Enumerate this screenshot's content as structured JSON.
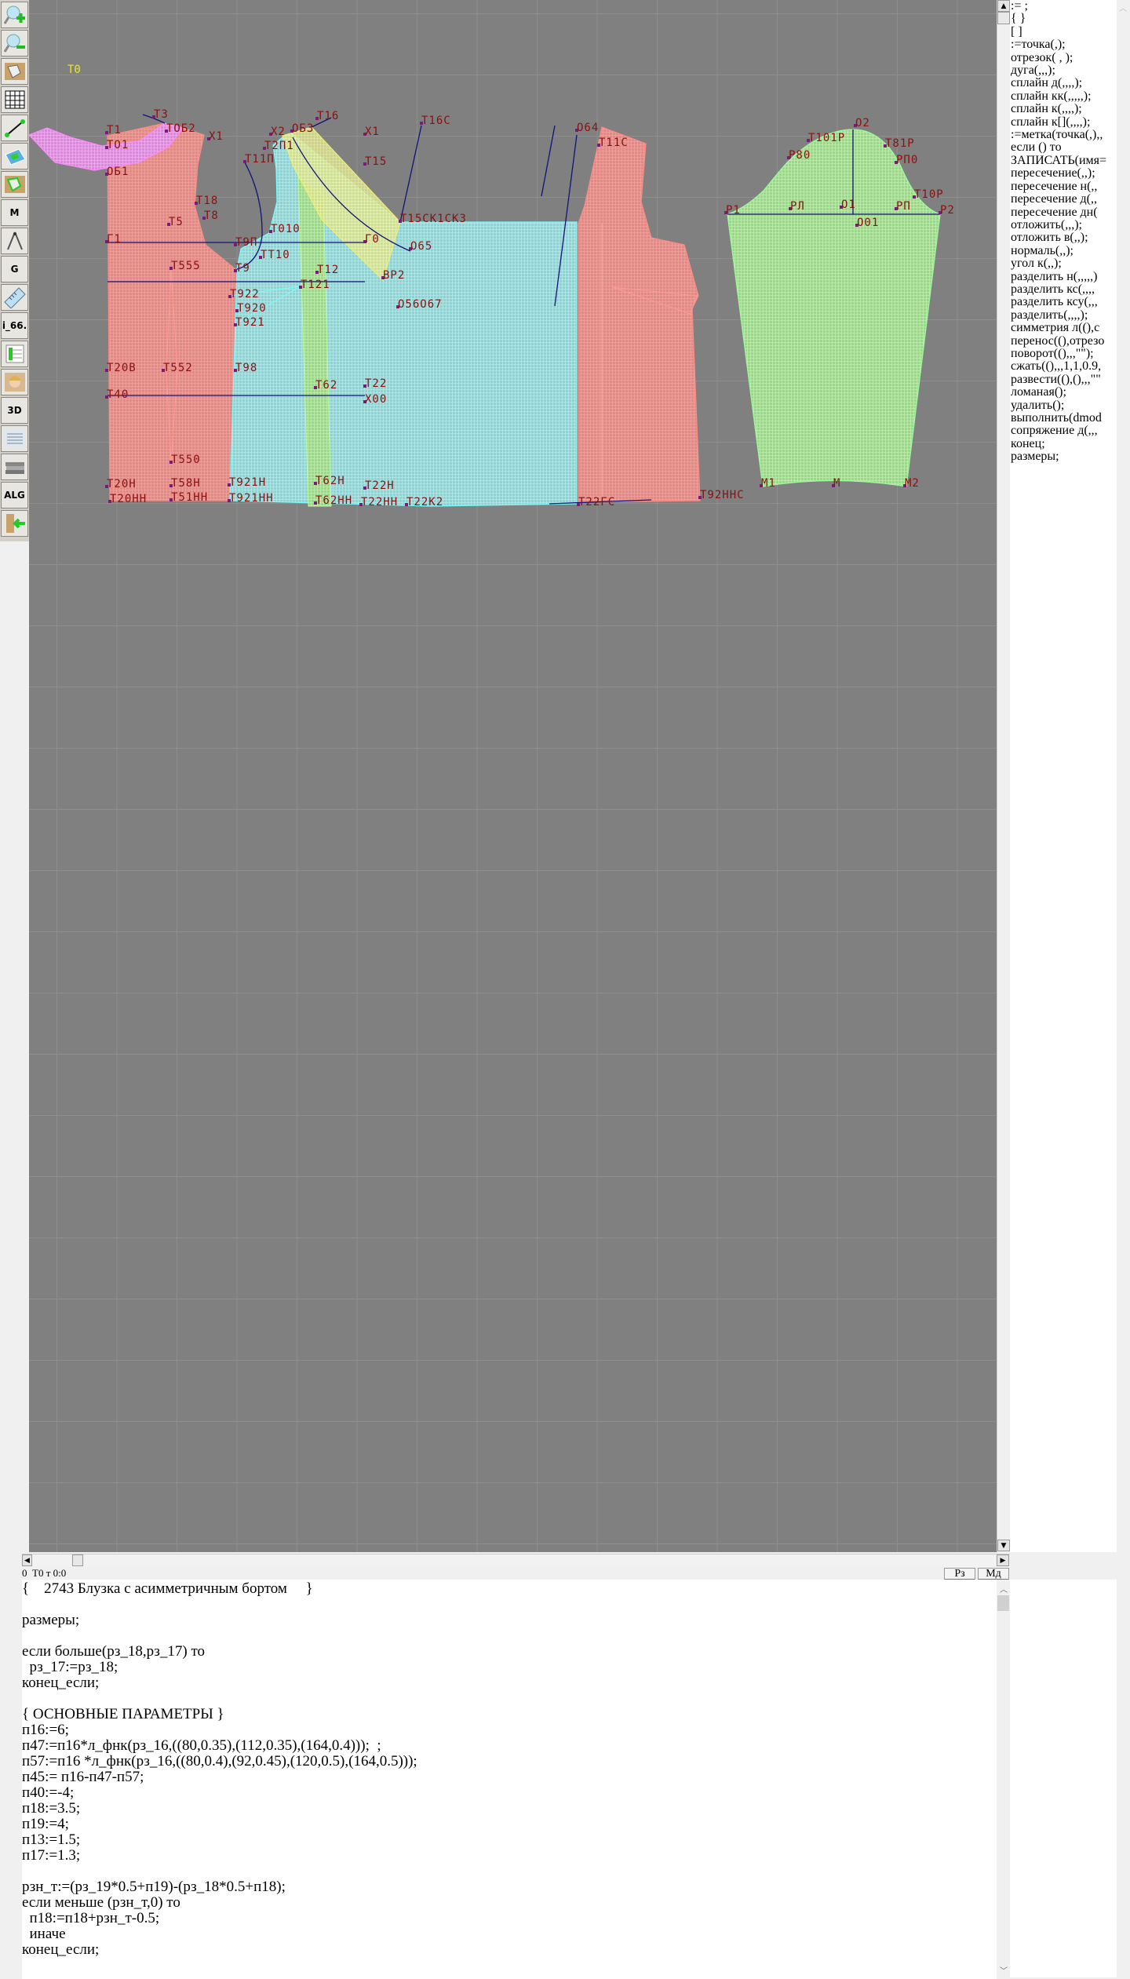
{
  "toolbar": {
    "items": [
      {
        "name": "zoom-in",
        "icon": "magnifier-plus-icon"
      },
      {
        "name": "zoom-out",
        "icon": "magnifier-minus-icon"
      },
      {
        "name": "pattern-pieces",
        "icon": "pattern-pieces-icon"
      },
      {
        "name": "grid",
        "icon": "grid-icon"
      },
      {
        "name": "segment",
        "icon": "segment-icon"
      },
      {
        "name": "layer",
        "icon": "layer-icon"
      },
      {
        "name": "outline",
        "icon": "outline-icon"
      },
      {
        "name": "model",
        "icon": "model-m-icon",
        "text": "M"
      },
      {
        "name": "compass",
        "icon": "compass-icon"
      },
      {
        "name": "grading",
        "icon": "grading-g-icon",
        "text": "G"
      },
      {
        "name": "ruler",
        "icon": "ruler-icon"
      },
      {
        "name": "version",
        "icon": "text-icon",
        "text": "i_66."
      },
      {
        "name": "table",
        "icon": "table-icon"
      },
      {
        "name": "avatar",
        "icon": "face-icon"
      },
      {
        "name": "3d",
        "icon": "3d-icon",
        "text": "3D"
      },
      {
        "name": "list",
        "icon": "list-icon"
      },
      {
        "name": "library",
        "icon": "books-icon"
      },
      {
        "name": "algorithm",
        "icon": "alg-icon",
        "text": "ALG"
      },
      {
        "name": "exit",
        "icon": "exit-arrow-icon"
      }
    ]
  },
  "canvas": {
    "origin_label": "Т0",
    "colors": {
      "background": "#808080",
      "back_piece": "#e88a86",
      "front_piece": "#8fd6d6",
      "collar": "#e08ce0",
      "facing": "#e6f08a",
      "strip": "#a6ec8c",
      "sleeve": "#9ee08e",
      "construction_line": "#101080",
      "label": "#8b1010"
    },
    "labels": [
      "Т3",
      "ТОБ2",
      "Х1",
      "Т1",
      "ТО1",
      "ОБ1",
      "Т11П",
      "Т18",
      "Т8",
      "Т5",
      "Г1",
      "Т9П",
      "Т010",
      "ТТ10",
      "Т9",
      "Т555",
      "Т121",
      "Т12",
      "ВР2",
      "Т922",
      "Т920",
      "Т921",
      "Т20В",
      "Т552",
      "Т98",
      "Т62",
      "Т22",
      "Х00",
      "Т40",
      "Т550",
      "Т20Н",
      "Т58Н",
      "Т921Н",
      "Т62Н",
      "Т22Н",
      "Т20НН",
      "Т51НН",
      "Т921НН",
      "Т62НН",
      "Т22НН",
      "Т22К2",
      "Х2",
      "ОБ3",
      "Т2П1",
      "Т16",
      "Х1",
      "Т15",
      "Т16С",
      "Т15СК1СК3",
      "Г0",
      "О65",
      "О56О67",
      "О64",
      "Т11С",
      "Т22ГС",
      "Т92ННС",
      "О2",
      "Т101Р",
      "Т81Р",
      "Р80",
      "РП0",
      "Т10Р",
      "Р1",
      "РЛ",
      "О1",
      "О01",
      "РП",
      "Р2",
      "М1",
      "М",
      "М2"
    ]
  },
  "status": {
    "text": "0  Т0 т 0:0",
    "btn_sizes": "Рз",
    "btn_model": "Мд"
  },
  "right_panel": {
    "commands": [
      ":= ;",
      "{  }",
      "[  ]",
      ":=точка(,);",
      "отрезок( , );",
      "дуга(,,,);",
      "сплайн  д(,,,,);",
      "сплайн  кк(,,,,,);",
      "сплайн  к(,,,,);",
      "сплайн  к[](,,,,);",
      ":=метка(точка(,),,",
      "если () то",
      "ЗАПИСАТЬ(имя=",
      "пересечение(,,);",
      "пересечение  н(,,",
      "пересечение  д(,,",
      "пересечение  дн(",
      "отложить(,,,);",
      "отложить  в(,,);",
      "нормаль(,,);",
      "угол  к(,,);",
      "разделить  н(,,,,,)",
      "разделить  кс(,,,,",
      "разделить  ксу(,,,",
      "разделить(,,,,);",
      "симметрия  л((),с",
      "перенос((),отрезо",
      "поворот((),,,\"\");",
      "сжать((),,,1,1,0.9,",
      "развести((),(),,,\"\"",
      "ломаная();",
      "удалить();",
      "выполнить(dmod",
      "сопряжение  д(,,,",
      "конец;",
      "размеры;"
    ]
  },
  "code": {
    "lines": [
      "{    2743 Блузка с асимметричным бортом     }",
      "",
      "размеры;",
      "",
      "если больше(рз_18,рз_17) то",
      "  рз_17:=рз_18;",
      "конец_если;",
      "",
      "{ ОСНОВНЫЕ ПАРАМЕТРЫ }",
      "п16:=6;",
      "п47:=п16*л_фнк(рз_16,((80,0.35),(112,0.35),(164,0.4)));  ;",
      "п57:=п16 *л_фнк(рз_16,((80,0.4),(92,0.45),(120,0.5),(164,0.5)));",
      "п45:= п16-п47-п57;",
      "п40:=-4;",
      "п18:=3.5;",
      "п19:=4;",
      "п13:=1.5;",
      "п17:=1.3;",
      "",
      "рзн_т:=(рз_19*0.5+п19)-(рз_18*0.5+п18);",
      "если меньше (рзн_т,0) то",
      "  п18:=п18+рзн_т-0.5;",
      "  иначе",
      "конец_если;"
    ]
  }
}
